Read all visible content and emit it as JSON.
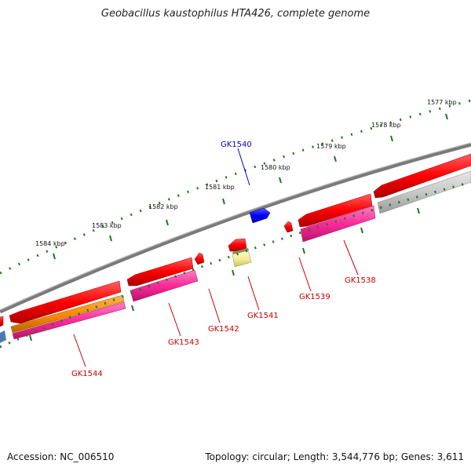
{
  "header": {
    "title": "Geobacillus kaustophilus HTA426, complete genome"
  },
  "footer": {
    "accession": "Accession: NC_006510",
    "summary": "Topology: circular; Length: 3,544,776 bp; Genes: 3,611"
  },
  "ruler": {
    "labels": [
      "1577 kbp",
      "1578 kbp",
      "1579 kbp",
      "1580 kbp",
      "1581 kbp",
      "1582 kbp",
      "1583 kbp",
      "1584 kbp"
    ]
  },
  "genes": [
    {
      "id": "GK1538",
      "label": "GK1538",
      "color": "#cc0000"
    },
    {
      "id": "GK1539",
      "label": "GK1539",
      "color": "#cc0000"
    },
    {
      "id": "GK1540",
      "label": "GK1540",
      "color": "#0000cc"
    },
    {
      "id": "GK1541",
      "label": "GK1541",
      "color": "#cc0000"
    },
    {
      "id": "GK1542",
      "label": "GK1542",
      "color": "#cc0000"
    },
    {
      "id": "GK1543",
      "label": "GK1543",
      "color": "#cc0000"
    },
    {
      "id": "GK1544",
      "label": "GK1544",
      "color": "#cc0000"
    }
  ],
  "colors": {
    "backbone": "#7a7a7a",
    "cds": "#ff0000",
    "rna": "#ff2a9a",
    "orange_feature": "#ff8c00",
    "grey_feature": "#c8c8c8",
    "blue_feature": "#0000ff",
    "yellow_feature": "#f5ee9a",
    "tick_color": "#1a7a1a"
  }
}
